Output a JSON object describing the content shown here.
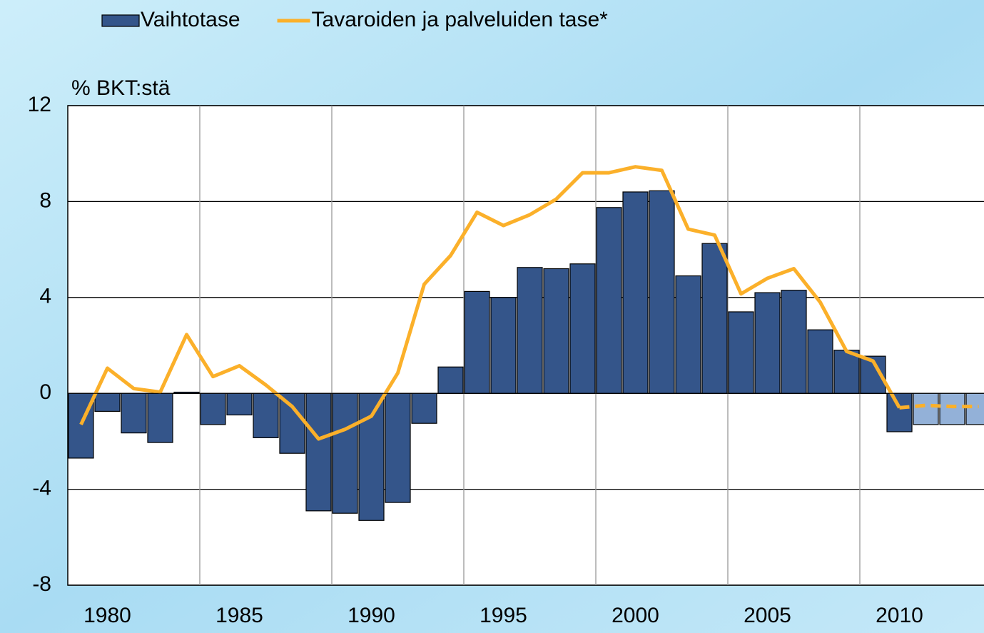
{
  "chart_data": {
    "type": "bar_line",
    "y_axis_label": "% BKT:stä",
    "categories": [
      1979,
      1980,
      1981,
      1982,
      1983,
      1984,
      1985,
      1986,
      1987,
      1988,
      1989,
      1990,
      1991,
      1992,
      1993,
      1994,
      1995,
      1996,
      1997,
      1998,
      1999,
      2000,
      2001,
      2002,
      2003,
      2004,
      2005,
      2006,
      2007,
      2008,
      2009,
      2010,
      2011,
      2012,
      2013
    ],
    "xticks": [
      {
        "value": 1980,
        "label": "1980"
      },
      {
        "value": 1985,
        "label": "1985"
      },
      {
        "value": 1990,
        "label": "1990"
      },
      {
        "value": 1995,
        "label": "1995"
      },
      {
        "value": 2000,
        "label": "2000"
      },
      {
        "value": 2005,
        "label": "2005"
      },
      {
        "value": 2010,
        "label": "2010"
      }
    ],
    "series": [
      {
        "name": "Vaihtotase",
        "kind": "bar",
        "color": "#34558a",
        "colors": [
          "#34558a",
          "#34558a",
          "#34558a",
          "#34558a",
          "#34558a",
          "#34558a",
          "#34558a",
          "#34558a",
          "#34558a",
          "#34558a",
          "#34558a",
          "#34558a",
          "#34558a",
          "#34558a",
          "#34558a",
          "#34558a",
          "#34558a",
          "#34558a",
          "#34558a",
          "#34558a",
          "#34558a",
          "#34558a",
          "#34558a",
          "#34558a",
          "#34558a",
          "#34558a",
          "#34558a",
          "#34558a",
          "#34558a",
          "#34558a",
          "#34558a",
          "#34558a",
          "#93b1d8",
          "#93b1d8",
          "#93b1d8"
        ],
        "values": [
          -2.7,
          -0.75,
          -1.65,
          -2.05,
          0.05,
          -1.3,
          -0.9,
          -1.85,
          -2.5,
          -4.9,
          -5.0,
          -5.3,
          -4.55,
          -1.25,
          1.1,
          4.25,
          4.0,
          5.25,
          5.2,
          5.4,
          7.75,
          8.4,
          8.45,
          4.9,
          6.25,
          3.4,
          4.2,
          4.3,
          2.65,
          1.8,
          1.55,
          -1.6,
          -1.3,
          -1.3,
          -1.3
        ]
      },
      {
        "name": "Tavaroiden ja palveluiden tase*",
        "kind": "line",
        "color": "#fbb02a",
        "styles": [
          "solid",
          "solid",
          "solid",
          "solid",
          "solid",
          "solid",
          "solid",
          "solid",
          "solid",
          "solid",
          "solid",
          "solid",
          "solid",
          "solid",
          "solid",
          "solid",
          "solid",
          "solid",
          "solid",
          "solid",
          "solid",
          "solid",
          "solid",
          "solid",
          "solid",
          "solid",
          "solid",
          "solid",
          "solid",
          "solid",
          "solid",
          "solid",
          "dashed",
          "dashed",
          "dashed"
        ],
        "values": [
          -1.3,
          1.05,
          0.2,
          0.05,
          2.45,
          0.7,
          1.15,
          0.35,
          -0.55,
          -1.9,
          -1.5,
          -0.95,
          0.85,
          4.55,
          5.75,
          7.55,
          7.0,
          7.45,
          8.1,
          9.2,
          9.2,
          9.45,
          9.3,
          6.85,
          6.6,
          4.15,
          4.8,
          5.2,
          3.8,
          1.75,
          1.35,
          -0.6,
          -0.5,
          -0.55,
          -0.55
        ]
      }
    ],
    "ylim": [
      -8,
      12
    ],
    "yticks": [
      -8,
      -4,
      0,
      4,
      8,
      12
    ],
    "grid": true
  }
}
